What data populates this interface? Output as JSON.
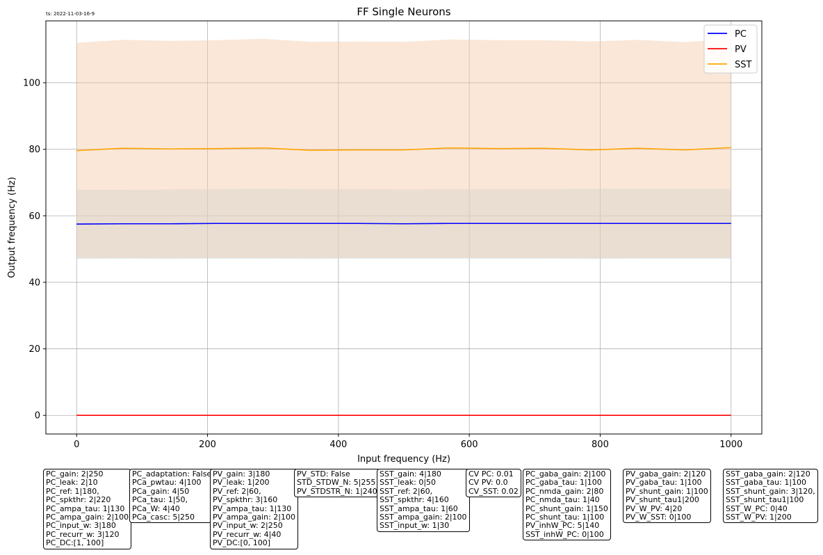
{
  "timestamp": "ts: 2022-11-03-16-9",
  "chart_data": {
    "type": "line",
    "title": "FF Single Neurons",
    "xlabel": "Input frequency (Hz)",
    "ylabel": "Output frequency (Hz)",
    "xlim": [
      -47,
      1047
    ],
    "ylim": [
      -5.6,
      118.6
    ],
    "xticks": [
      0,
      200,
      400,
      600,
      800,
      1000
    ],
    "yticks": [
      0,
      20,
      40,
      60,
      80,
      100
    ],
    "grid": true,
    "legend_position": "top-right",
    "x": [
      0,
      71,
      143,
      214,
      286,
      357,
      429,
      500,
      571,
      643,
      714,
      786,
      857,
      929,
      1000
    ],
    "series": [
      {
        "name": "PC",
        "color": "#0000ff",
        "values": [
          57.5,
          57.6,
          57.6,
          57.7,
          57.7,
          57.7,
          57.7,
          57.6,
          57.7,
          57.7,
          57.7,
          57.7,
          57.7,
          57.7,
          57.7
        ],
        "band_low": [
          47.0,
          47.1,
          47.0,
          47.1,
          47.1,
          47.0,
          47.1,
          47.1,
          47.1,
          47.1,
          47.1,
          47.0,
          47.1,
          47.1,
          47.1
        ],
        "band_high": [
          67.8,
          67.8,
          67.9,
          68.0,
          68.1,
          68.0,
          68.0,
          67.9,
          68.0,
          68.0,
          68.0,
          68.1,
          68.1,
          68.1,
          68.1
        ],
        "band_color": "#bfd9e8"
      },
      {
        "name": "PV",
        "color": "#ff0000",
        "values": [
          0,
          0,
          0,
          0,
          0,
          0,
          0,
          0,
          0,
          0,
          0,
          0,
          0,
          0,
          0
        ]
      },
      {
        "name": "SST",
        "color": "#ffa500",
        "values": [
          79.6,
          80.3,
          80.1,
          80.2,
          80.4,
          79.7,
          79.8,
          79.8,
          80.4,
          80.2,
          80.3,
          79.8,
          80.3,
          79.8,
          80.5
        ],
        "band_low": [
          47.2,
          47.3,
          47.2,
          47.3,
          47.3,
          47.2,
          47.3,
          47.3,
          47.3,
          47.3,
          47.3,
          47.2,
          47.3,
          47.3,
          47.3
        ],
        "band_high": [
          112.0,
          112.9,
          112.6,
          112.8,
          113.2,
          112.3,
          112.4,
          112.3,
          113.0,
          112.8,
          112.8,
          112.4,
          112.9,
          112.2,
          113.0
        ],
        "band_color": "#f5c9a8"
      }
    ]
  },
  "param_boxes": [
    {
      "lines": [
        "PC_gain: 2|250",
        "PC_leak: 2|10",
        "PC_ref: 1|180,",
        "PC_spkthr: 2|220",
        "PC_ampa_tau: 1|130",
        "PC_ampa_gain: 2|100",
        "PC_input_w: 3|180",
        "PC_recurr_w: 3|120",
        "PC_DC:[1, 100]"
      ]
    },
    {
      "lines": [
        "PC_adaptation: False",
        "PCa_pwtau: 4|100",
        "PCa_gain: 4|50",
        "PCa_tau: 1|50,",
        "PCa_W: 4|40",
        "PCa_casc: 5|250"
      ]
    },
    {
      "lines": [
        "PV_gain: 3|180",
        "PV_leak: 1|200",
        "PV_ref: 2|60,",
        "PV_spkthr: 3|160",
        "PV_ampa_tau: 1|130",
        "PV_ampa_gain: 2|100",
        "PV_input_w: 2|250",
        "PV_recurr_w: 4|40",
        "PV_DC:[0, 100]"
      ]
    },
    {
      "lines": [
        "PV_STD: False",
        "STD_STDW_N: 5|255",
        "PV_STDSTR_N: 1|240"
      ]
    },
    {
      "lines": [
        "SST_gain: 4|180",
        "SST_leak: 0|50",
        "SST_ref: 2|60,",
        "SST_spkthr: 4|160",
        "SST_ampa_tau: 1|60",
        "SST_ampa_gain: 2|100",
        "SST_input_w: 1|30"
      ]
    },
    {
      "lines": [
        "CV PC: 0.01",
        "CV PV: 0.0",
        "CV_SST: 0.02"
      ]
    },
    {
      "lines": [
        "PC_gaba_gain: 2|100",
        "PC_gaba_tau: 1|100",
        "PC_nmda_gain: 2|80",
        "PC_nmda_tau: 1|40",
        "PC_shunt_gain: 1|150",
        "PC_shunt_tau: 1|100",
        "PV_inhW_PC: 5|140",
        "SST_inhW_PC: 0|100"
      ]
    },
    {
      "lines": [
        "PV_gaba_gain: 2|120",
        "PV_gaba_tau: 1|100",
        "PV_shunt_gain: 1|100",
        "PV_shunt_tau1|200",
        "PV_W_PV: 4|20",
        "PV_W_SST: 0|100"
      ]
    },
    {
      "lines": [
        "SST_gaba_gain: 2|120",
        "SST_gaba_tau: 1|100",
        "SST_shunt_gain: 3|120,",
        "SST_shunt_tau1|100",
        "SST_W_PC: 0|40",
        "SST_W_PV: 1|200"
      ]
    }
  ]
}
